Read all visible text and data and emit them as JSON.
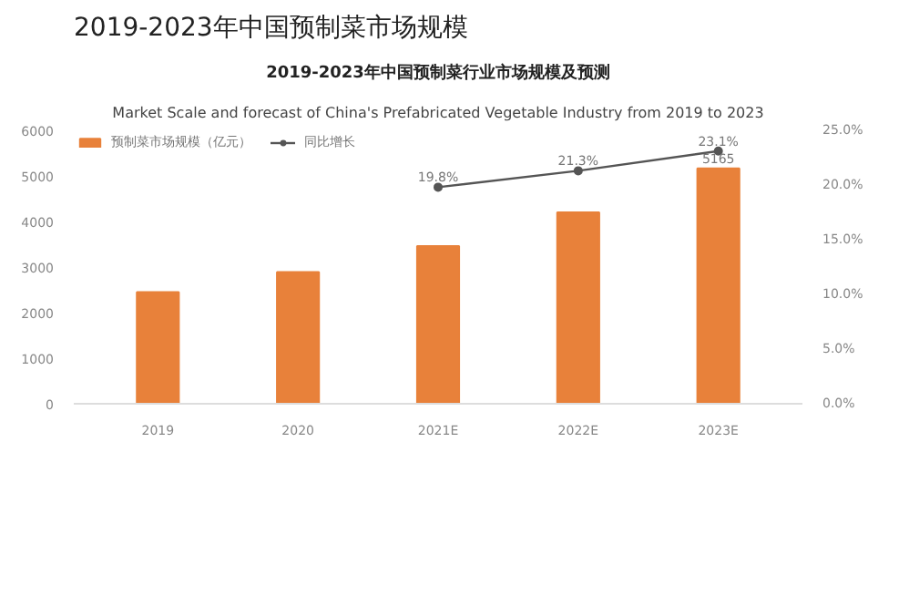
{
  "chart_data": {
    "type": "bar",
    "title": "2019-2023年中国预制菜市场规模",
    "subtitle": "2019-2023年中国预制菜行业市场规模及预测",
    "annotations": [
      "Market Scale and forecast of China's Prefabricated Vegetable Industry from 2019 to 2023"
    ],
    "categories": [
      "2019",
      "2020",
      "2021E",
      "2022E",
      "2023E"
    ],
    "series": [
      {
        "name": "预制菜市场规模（亿元）",
        "color": "#e8813a",
        "values": [
          2450,
          2890,
          3460,
          4200,
          5165
        ],
        "value_labels": [
          null,
          null,
          null,
          null,
          "5165"
        ]
      },
      {
        "name": "同比增长",
        "type": "line",
        "axis": "y2",
        "color": "#555555",
        "values": [
          null,
          null,
          19.8,
          21.3,
          23.1
        ],
        "value_labels": [
          null,
          null,
          "19.8%",
          "21.3%",
          "23.1%"
        ]
      }
    ],
    "ylim": [
      0,
      6000
    ],
    "yticks": [
      0,
      1000,
      2000,
      3000,
      4000,
      5000,
      6000
    ],
    "y2lim": [
      0,
      25
    ],
    "y2ticks": [
      {
        "value": 0,
        "label": "0.0%"
      },
      {
        "value": 5,
        "label": "5.0%"
      },
      {
        "value": 10,
        "label": "10.0%"
      },
      {
        "value": 15,
        "label": "15.0%"
      },
      {
        "value": 20,
        "label": "20.0%"
      },
      {
        "value": 25,
        "label": "25.0%"
      }
    ],
    "marker": "circle",
    "legend": "top left",
    "grid": false
  }
}
